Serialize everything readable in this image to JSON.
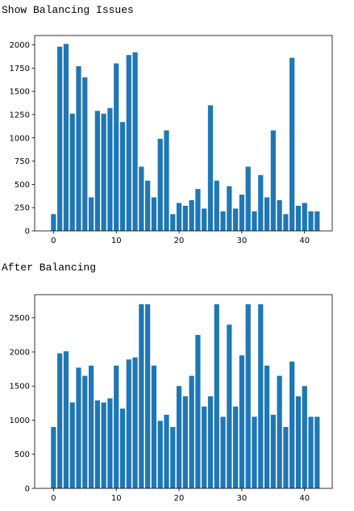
{
  "cells": [
    {
      "label": "Show Balancing Issues"
    },
    {
      "label": "After Balancing"
    }
  ],
  "chart_data": [
    {
      "type": "bar",
      "title": "",
      "xlabel": "",
      "ylabel": "",
      "color": "#1f77b4",
      "x": [
        0,
        1,
        2,
        3,
        4,
        5,
        6,
        7,
        8,
        9,
        10,
        11,
        12,
        13,
        14,
        15,
        16,
        17,
        18,
        19,
        20,
        21,
        22,
        23,
        24,
        25,
        26,
        27,
        28,
        29,
        30,
        31,
        32,
        33,
        34,
        35,
        36,
        37,
        38,
        39,
        40,
        41,
        42
      ],
      "values": [
        180,
        1980,
        2010,
        1260,
        1770,
        1650,
        360,
        1290,
        1260,
        1320,
        1800,
        1170,
        1890,
        1920,
        690,
        540,
        360,
        990,
        1080,
        180,
        300,
        270,
        330,
        450,
        240,
        1350,
        540,
        210,
        480,
        240,
        390,
        690,
        210,
        600,
        360,
        1080,
        330,
        180,
        1860,
        270,
        300,
        210,
        210
      ],
      "xlim": [
        -3,
        44.4
      ],
      "ylim": [
        0,
        2100
      ],
      "xticks": [
        0,
        10,
        20,
        30,
        40
      ],
      "yticks": [
        0,
        250,
        500,
        750,
        1000,
        1250,
        1500,
        1750,
        2000
      ],
      "xtick_labels": [
        "0",
        "10",
        "20",
        "30",
        "40"
      ],
      "ytick_labels": [
        "0",
        "250",
        "500",
        "750",
        "1000",
        "1250",
        "1500",
        "1750",
        "2000"
      ],
      "grid": false
    },
    {
      "type": "bar",
      "title": "",
      "xlabel": "",
      "ylabel": "",
      "color": "#1f77b4",
      "x": [
        0,
        1,
        2,
        3,
        4,
        5,
        6,
        7,
        8,
        9,
        10,
        11,
        12,
        13,
        14,
        15,
        16,
        17,
        18,
        19,
        20,
        21,
        22,
        23,
        24,
        25,
        26,
        27,
        28,
        29,
        30,
        31,
        32,
        33,
        34,
        35,
        36,
        37,
        38,
        39,
        40,
        41,
        42
      ],
      "values": [
        900,
        1980,
        2010,
        1260,
        1770,
        1650,
        1800,
        1290,
        1260,
        1320,
        1800,
        1170,
        1890,
        1920,
        2700,
        2700,
        1800,
        990,
        1080,
        900,
        1500,
        1350,
        1650,
        2250,
        1200,
        1350,
        2700,
        1050,
        2400,
        1200,
        1950,
        2700,
        1050,
        2700,
        1800,
        1080,
        1650,
        900,
        1860,
        1350,
        1500,
        1050,
        1050
      ],
      "xlim": [
        -3,
        44.4
      ],
      "ylim": [
        0,
        2840
      ],
      "xticks": [
        0,
        10,
        20,
        30,
        40
      ],
      "yticks": [
        0,
        500,
        1000,
        1500,
        2000,
        2500
      ],
      "xtick_labels": [
        "0",
        "10",
        "20",
        "30",
        "40"
      ],
      "ytick_labels": [
        "0",
        "500",
        "1000",
        "1500",
        "2000",
        "2500"
      ],
      "grid": false
    }
  ]
}
